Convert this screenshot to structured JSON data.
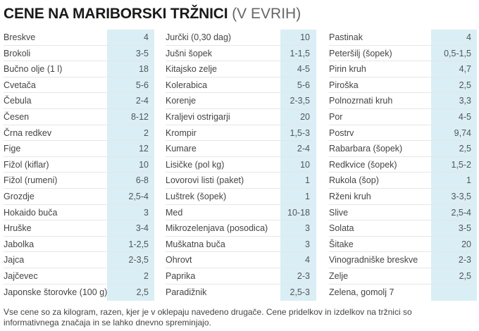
{
  "title": {
    "main": "CENE NA MARIBORSKI TRŽNICI",
    "sub": " (V EVRIH)"
  },
  "colors": {
    "price_band": "#daeef5",
    "divider": "#e6e6e6"
  },
  "columns": [
    {
      "rows": [
        {
          "name": "Breskve",
          "price": "4"
        },
        {
          "name": "Brokoli",
          "price": "3-5"
        },
        {
          "name": "Bučno olje (1 l)",
          "price": "18"
        },
        {
          "name": "Cvetača",
          "price": "5-6"
        },
        {
          "name": "Čebula",
          "price": "2-4"
        },
        {
          "name": "Česen",
          "price": "8-12"
        },
        {
          "name": "Črna redkev",
          "price": "2"
        },
        {
          "name": "Fige",
          "price": "12"
        },
        {
          "name": "Fižol (kiflar)",
          "price": "10"
        },
        {
          "name": "Fižol (rumeni)",
          "price": "6-8"
        },
        {
          "name": "Grozdje",
          "price": "2,5-4"
        },
        {
          "name": "Hokaido buča",
          "price": "3"
        },
        {
          "name": "Hruške",
          "price": "3-4"
        },
        {
          "name": "Jabolka",
          "price": "1-2,5"
        },
        {
          "name": "Jajca",
          "price": "2-3,5"
        },
        {
          "name": "Jajčevec",
          "price": "2"
        },
        {
          "name": "Japonske štorovke (100 g)",
          "price": "2,5"
        }
      ]
    },
    {
      "rows": [
        {
          "name": "Jurčki (0,30 dag)",
          "price": "10"
        },
        {
          "name": "Jušni šopek",
          "price": "1-1,5"
        },
        {
          "name": "Kitajsko zelje",
          "price": "4-5"
        },
        {
          "name": "Kolerabica",
          "price": "5-6"
        },
        {
          "name": "Korenje",
          "price": "2-3,5"
        },
        {
          "name": "Kraljevi ostrigarji",
          "price": "20"
        },
        {
          "name": "Krompir",
          "price": "1,5-3"
        },
        {
          "name": "Kumare",
          "price": "2-4"
        },
        {
          "name": "Lisičke (pol kg)",
          "price": "10"
        },
        {
          "name": "Lovorovi listi (paket)",
          "price": "1"
        },
        {
          "name": "Luštrek (šopek)",
          "price": "1"
        },
        {
          "name": "Med",
          "price": "10-18"
        },
        {
          "name": "Mikrozelenjava (posodica)",
          "price": "3"
        },
        {
          "name": "Muškatna buča",
          "price": "3"
        },
        {
          "name": "Ohrovt",
          "price": "4"
        },
        {
          "name": "Paprika",
          "price": "2-3"
        },
        {
          "name": "Paradižnik",
          "price": "2,5-3"
        }
      ]
    },
    {
      "rows": [
        {
          "name": "Pastinak",
          "price": "4"
        },
        {
          "name": "Peteršilj (šopek)",
          "price": "0,5-1,5"
        },
        {
          "name": "Pirin kruh",
          "price": "4,7"
        },
        {
          "name": "Piroška",
          "price": "2,5"
        },
        {
          "name": "Polnozrnati kruh",
          "price": "3,3"
        },
        {
          "name": "Por",
          "price": "4-5"
        },
        {
          "name": "Postrv",
          "price": "9,74"
        },
        {
          "name": "Rabarbara (šopek)",
          "price": "2,5"
        },
        {
          "name": "Redkvice (šopek)",
          "price": "1,5-2"
        },
        {
          "name": "Rukola (šop)",
          "price": "1"
        },
        {
          "name": "Rženi kruh",
          "price": "3-3,5"
        },
        {
          "name": "Slive",
          "price": "2,5-4"
        },
        {
          "name": "Solata",
          "price": "3-5"
        },
        {
          "name": "Šitake",
          "price": "20"
        },
        {
          "name": "Vinogradniške breskve",
          "price": "2-3"
        },
        {
          "name": "Zelje",
          "price": "2,5"
        },
        {
          "name": "Zelena, gomolj 7",
          "price": ""
        }
      ]
    }
  ],
  "footer": "Vse cene so za kilogram, razen, kjer je v oklepaju navedeno drugače. Cene pridelkov in izdelkov na tržnici so informativnega značaja in se lahko dnevno spreminjajo."
}
